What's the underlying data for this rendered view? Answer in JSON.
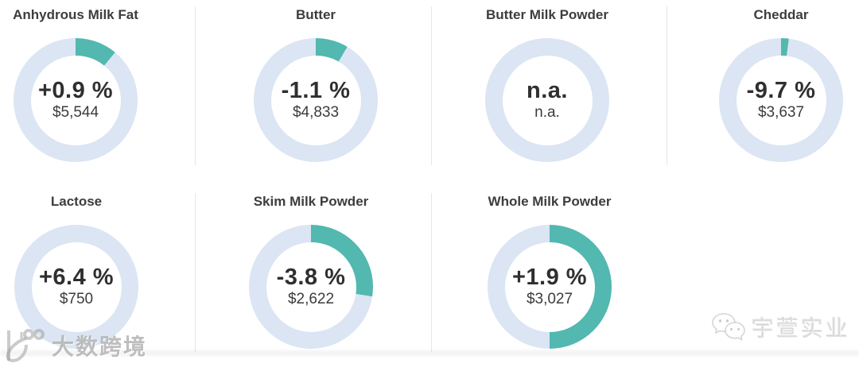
{
  "page": {
    "background": "#ffffff"
  },
  "chart_data": {
    "type": "donut",
    "description_layout": "grid of 7 donut KPI gauges, 4 in row 1 and 3 in row 2, value and price centered inside each ring, arc drawn clockwise from 12 o'clock",
    "colors": {
      "arc": "#52b8b0",
      "track": "#dbe5f3"
    },
    "cards": [
      {
        "title": "Anhydrous Milk Fat",
        "change": "+0.9 %",
        "price": "$5,544",
        "arc_fraction": 0.11,
        "row": 1
      },
      {
        "title": "Butter",
        "change": "-1.1 %",
        "price": "$4,833",
        "arc_fraction": 0.085,
        "row": 1
      },
      {
        "title": "Butter Milk Powder",
        "change": "n.a.",
        "price": "n.a.",
        "arc_fraction": 0,
        "row": 1
      },
      {
        "title": "Cheddar",
        "change": "-9.7 %",
        "price": "$3,637",
        "arc_fraction": 0.02,
        "row": 1
      },
      {
        "title": "Lactose",
        "change": "+6.4 %",
        "price": "$750",
        "arc_fraction": 0,
        "row": 2
      },
      {
        "title": "Skim Milk Powder",
        "change": "-3.8 %",
        "price": "$2,622",
        "arc_fraction": 0.275,
        "row": 2
      },
      {
        "title": "Whole Milk Powder",
        "change": "+1.9 %",
        "price": "$3,027",
        "arc_fraction": 0.5,
        "row": 2
      }
    ]
  },
  "watermarks": {
    "bottom_left": {
      "icon": "dashukuajing-logo-icon",
      "text": "大数跨境"
    },
    "bottom_right": {
      "icon": "wechat-icon",
      "text": "宇萱实业"
    }
  }
}
